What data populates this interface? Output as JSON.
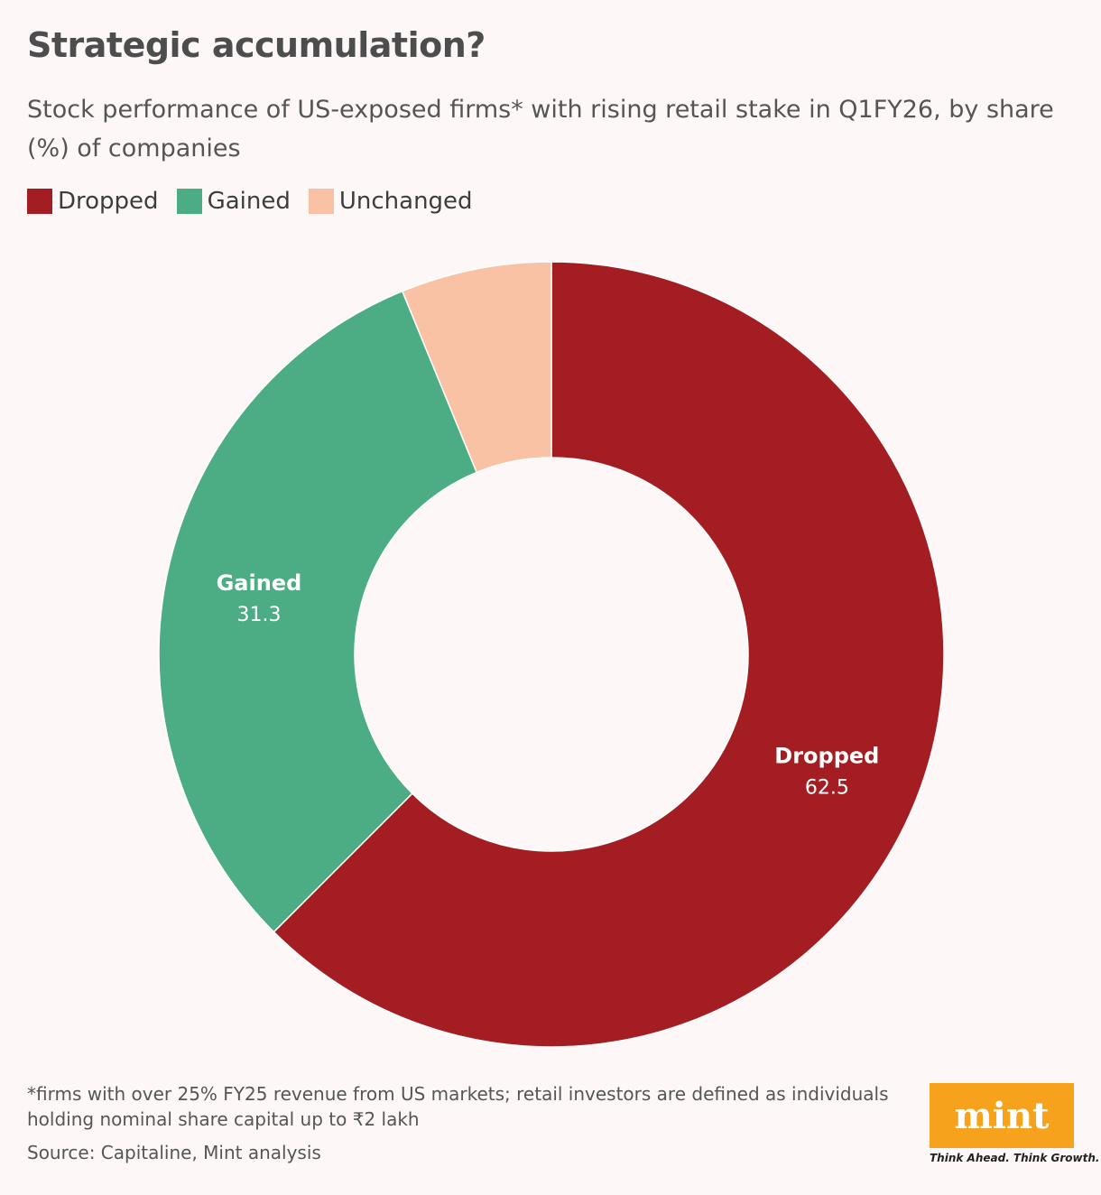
{
  "title": "Strategic accumulation?",
  "subtitle": "Stock performance of US-exposed firms* with rising retail stake in Q1FY26, by share (%) of companies",
  "footnote": "*firms with over 25% FY25 revenue from US markets; retail investors are defined as individuals holding nominal share capital up to ₹2 lakh",
  "source": "Source: Capitaline, Mint analysis",
  "brand": {
    "logo_text": "mint",
    "tagline": "Think Ahead. Think Growth.",
    "color": "#f6a21d"
  },
  "chart_data": {
    "type": "pie",
    "donut": true,
    "title": "Strategic accumulation?",
    "legend_placement": "top-left",
    "slices": [
      {
        "label": "Dropped",
        "value": 62.5,
        "value_label": "62.5",
        "color": "#a41d22"
      },
      {
        "label": "Gained",
        "value": 31.3,
        "value_label": "31.3",
        "color": "#4cad84"
      },
      {
        "label": "Unchanged",
        "value": 6.2,
        "value_label": "",
        "color": "#f9c2a4"
      }
    ]
  }
}
